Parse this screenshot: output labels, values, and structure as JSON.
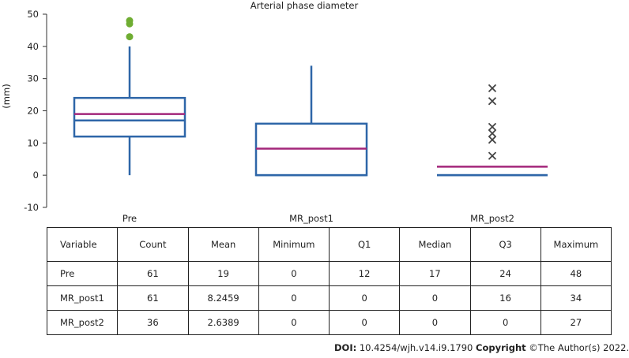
{
  "chart_data": {
    "type": "box",
    "title": "Arterial phase diameter",
    "ylabel": "(mm)",
    "ylim": [
      -10,
      50
    ],
    "yticks": [
      "-10",
      "0",
      "10",
      "20",
      "30",
      "40",
      "50"
    ],
    "categories": [
      "Pre",
      "MR_post1",
      "MR_post2"
    ],
    "boxes": [
      {
        "label": "Pre",
        "min": 0,
        "q1": 12,
        "median": 17,
        "q3": 24,
        "max": 48,
        "mean": 19,
        "whisker_low": 0,
        "whisker_high": 40,
        "outliers": [
          43,
          47,
          48
        ],
        "outlier_marker": "circle"
      },
      {
        "label": "MR_post1",
        "min": 0,
        "q1": 0,
        "median": 0,
        "q3": 16,
        "max": 34,
        "mean": 8.2459,
        "whisker_low": 0,
        "whisker_high": 34,
        "outliers": [],
        "outlier_marker": "none"
      },
      {
        "label": "MR_post2",
        "min": 0,
        "q1": 0,
        "median": 0,
        "q3": 0,
        "max": 27,
        "mean": 2.6389,
        "whisker_low": 0,
        "whisker_high": 0,
        "outliers": [
          6,
          11,
          13,
          15,
          23,
          27
        ],
        "outlier_marker": "x"
      }
    ],
    "colors": {
      "box": "#2e66a8",
      "mean": "#a3267a",
      "outlier_circle": "#6fad32",
      "outlier_x": "#444444",
      "axis": "#333333"
    },
    "grid": false,
    "legend": "none"
  },
  "table": {
    "headers": [
      "Variable",
      "Count",
      "Mean",
      "Minimum",
      "Q1",
      "Median",
      "Q3",
      "Maximum"
    ],
    "rows": [
      [
        "Pre",
        "61",
        "19",
        "0",
        "12",
        "17",
        "24",
        "48"
      ],
      [
        "MR_post1",
        "61",
        "8.2459",
        "0",
        "0",
        "0",
        "16",
        "34"
      ],
      [
        "MR_post2",
        "36",
        "2.6389",
        "0",
        "0",
        "0",
        "0",
        "27"
      ]
    ]
  },
  "credit": {
    "doi_label": "DOI:",
    "doi": "10.4254/wjh.v14.i9.1790",
    "copyright_label": "Copyright",
    "copyright": "©The Author(s) 2022."
  }
}
